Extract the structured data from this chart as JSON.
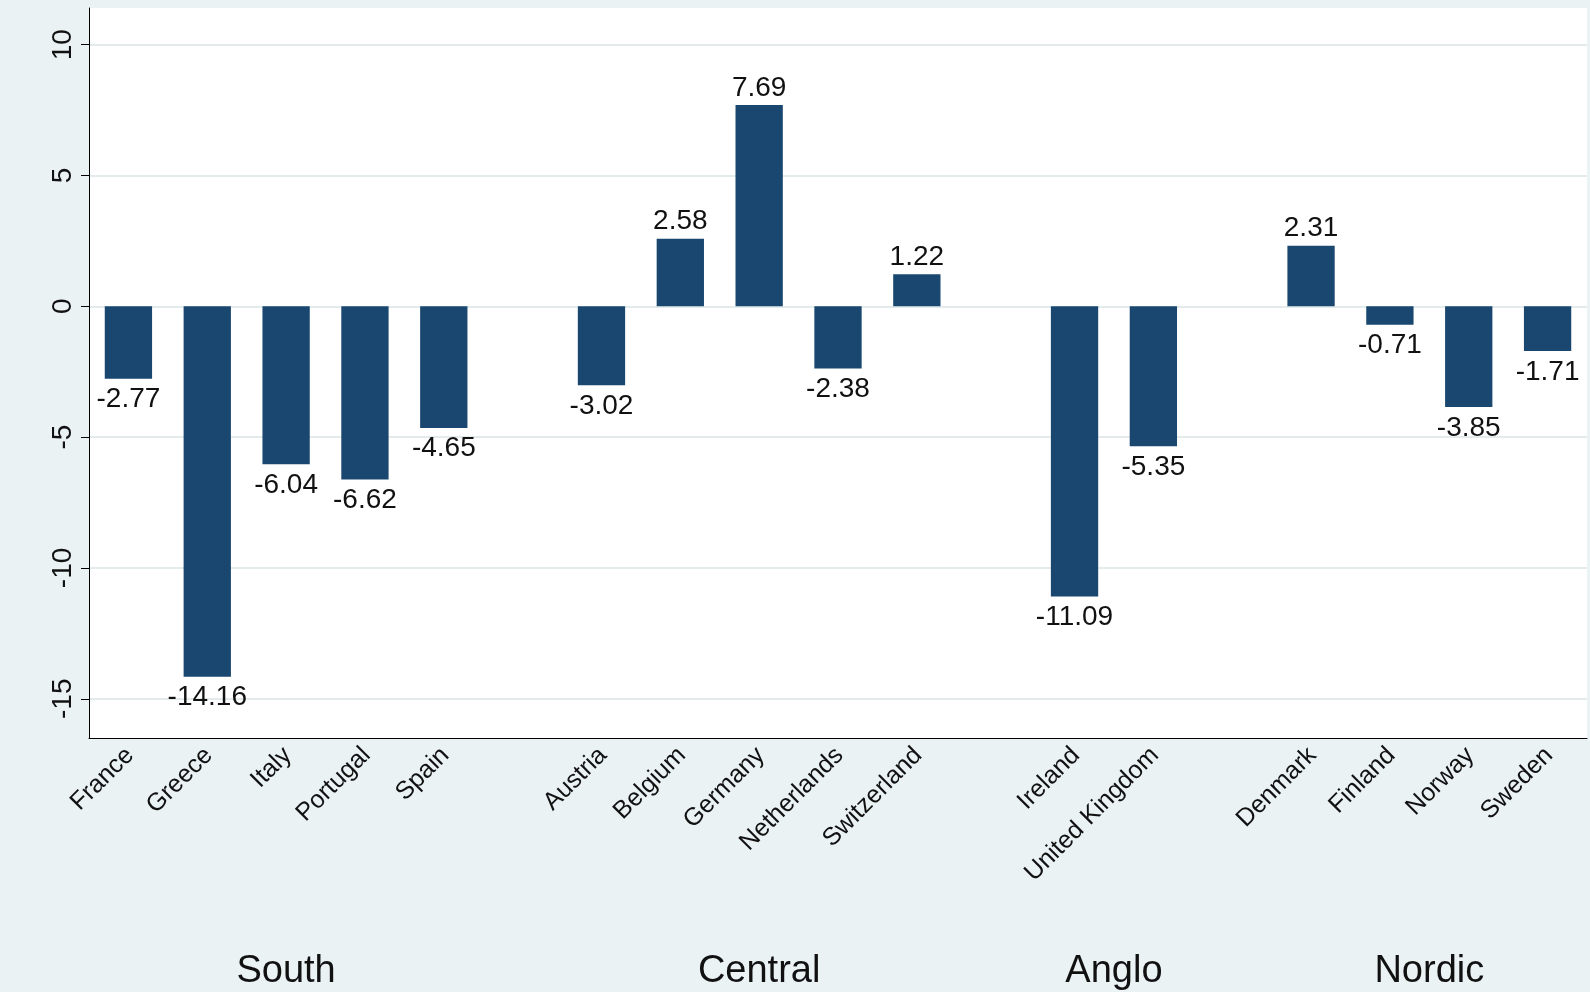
{
  "chart_data": {
    "type": "bar",
    "categories": [
      "France",
      "Greece",
      "Italy",
      "Portugal",
      "Spain",
      null,
      "Austria",
      "Belgium",
      "Germany",
      "Netherlands",
      "Switzerland",
      null,
      "Ireland",
      "United Kingdom",
      null,
      "Denmark",
      "Finland",
      "Norway",
      "Sweden"
    ],
    "values": [
      -2.77,
      -14.16,
      -6.04,
      -6.62,
      -4.65,
      null,
      -3.02,
      2.58,
      7.69,
      -2.38,
      1.22,
      null,
      -11.09,
      -5.35,
      null,
      2.31,
      -0.71,
      -3.85,
      -1.71
    ],
    "color": "#1a476f",
    "ylim": [
      -16.5,
      11.4
    ],
    "yticks": [
      -15,
      -10,
      -5,
      0,
      5,
      10
    ],
    "grid": "y",
    "data_labels": true,
    "annotations": [
      "South",
      "Central",
      "Anglo",
      "Nordic"
    ]
  }
}
